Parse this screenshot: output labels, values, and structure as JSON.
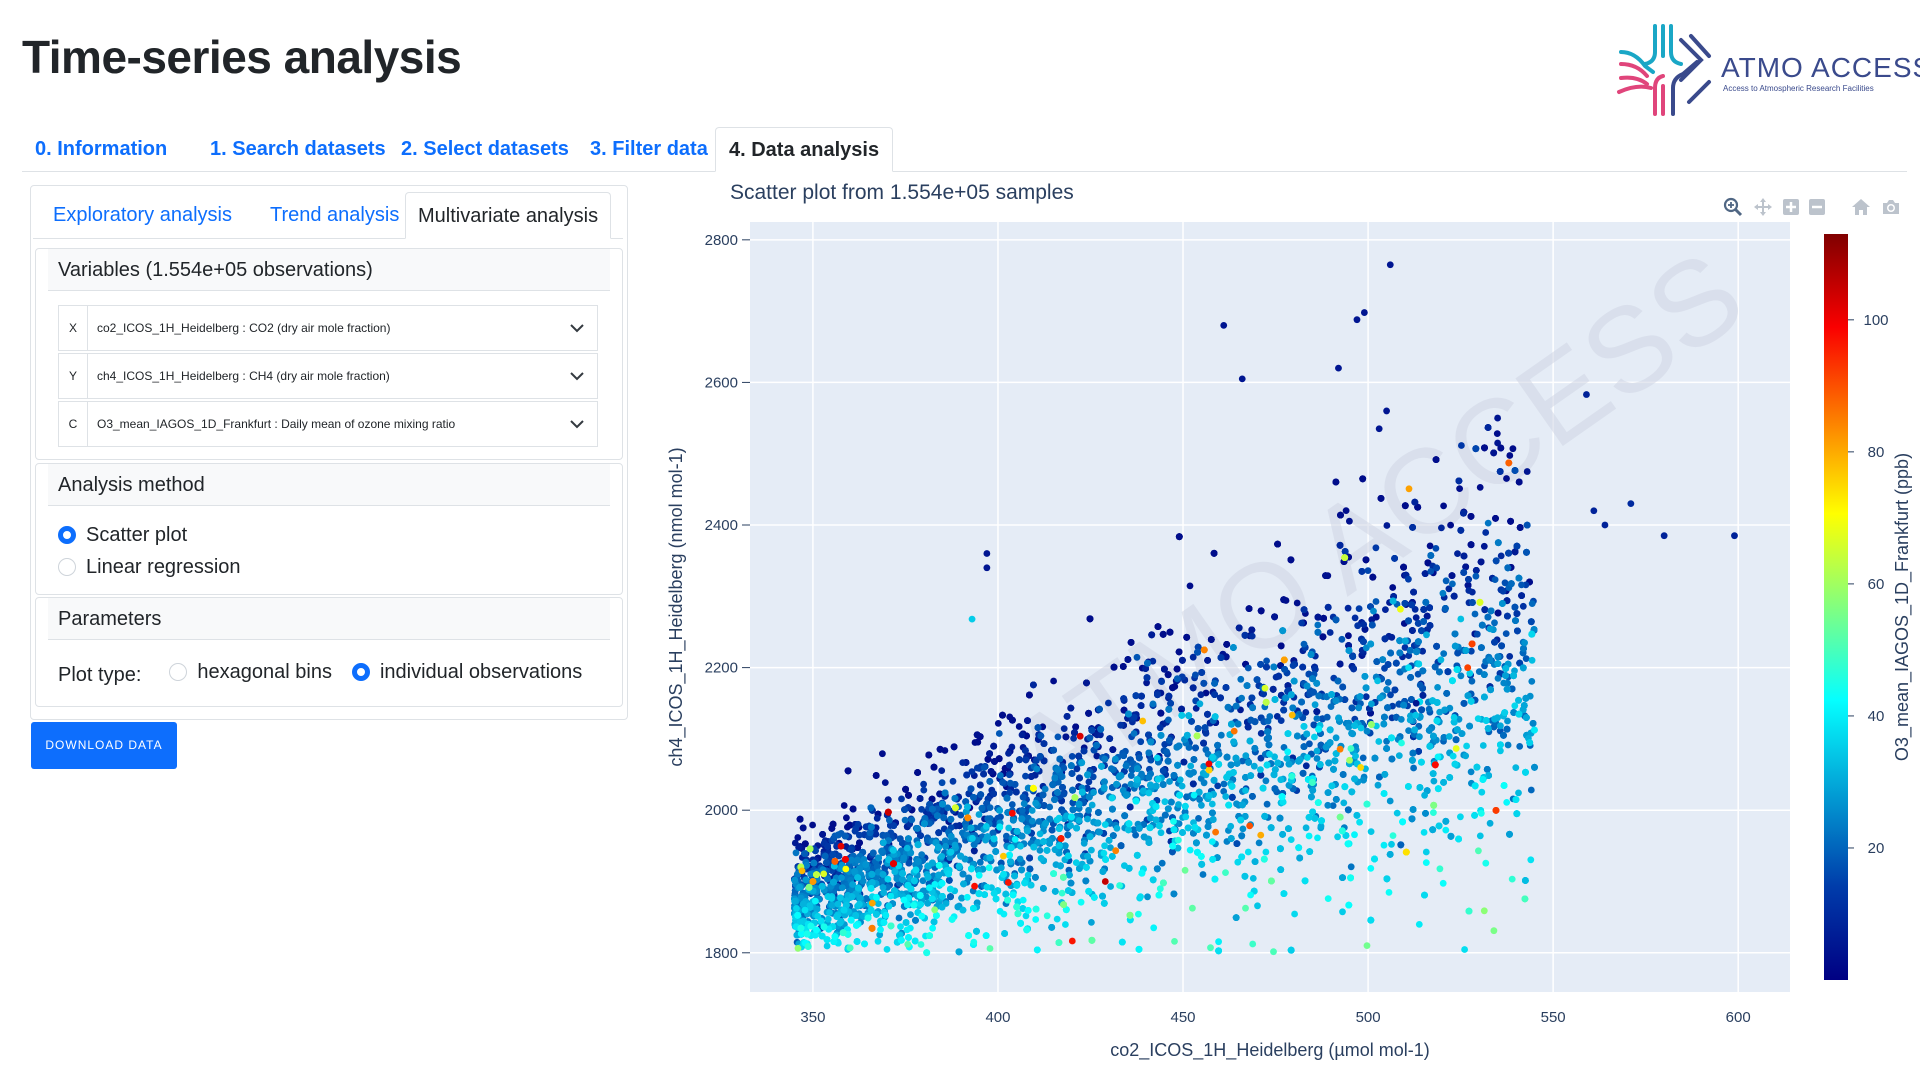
{
  "page": {
    "title": "Time-series analysis"
  },
  "logo": {
    "name": "ATMO ACCESS",
    "tagline": "Access to Atmospheric Research Facilities"
  },
  "tabs": [
    {
      "label": "0. Information"
    },
    {
      "label": "1. Search datasets"
    },
    {
      "label": "2. Select datasets"
    },
    {
      "label": "3. Filter data"
    },
    {
      "label": "4. Data analysis",
      "active": true
    }
  ],
  "subtabs": [
    {
      "label": "Exploratory analysis"
    },
    {
      "label": "Trend analysis"
    },
    {
      "label": "Multivariate analysis",
      "active": true
    }
  ],
  "variables": {
    "header": "Variables (1.554e+05 observations)",
    "rows": [
      {
        "prefix": "X",
        "value": "co2_ICOS_1H_Heidelberg : CO2 (dry air mole fraction)"
      },
      {
        "prefix": "Y",
        "value": "ch4_ICOS_1H_Heidelberg : CH4 (dry air mole fraction)"
      },
      {
        "prefix": "C",
        "value": "O3_mean_IAGOS_1D_Frankfurt : Daily mean of ozone mixing ratio"
      }
    ]
  },
  "analysis_method": {
    "header": "Analysis method",
    "options": [
      {
        "label": "Scatter plot",
        "checked": true
      },
      {
        "label": "Linear regression",
        "checked": false
      }
    ]
  },
  "parameters": {
    "header": "Parameters",
    "plot_type_label": "Plot type:",
    "options": [
      {
        "label": "hexagonal bins",
        "checked": false
      },
      {
        "label": "individual observations",
        "checked": true
      }
    ]
  },
  "download_button": "DOWNLOAD DATA",
  "plot": {
    "title": "Scatter plot from 1.554e+05 samples",
    "watermark": "ATMO ACCESS",
    "modebar_icons": [
      "zoom-icon",
      "pan-icon",
      "zoom-in-icon",
      "zoom-out-icon",
      "reset-axes-icon",
      "camera-icon"
    ]
  },
  "chart_data": {
    "type": "scatter",
    "xlabel": "co2_ICOS_1H_Heidelberg (µmol mol-1)",
    "ylabel": "ch4_ICOS_1H_Heidelberg (nmol mol-1)",
    "colorbar_label": "O3_mean_IAGOS_1D_Frankfurt (ppb)",
    "xlim": [
      333,
      614
    ],
    "ylim": [
      1745,
      2825
    ],
    "xticks": [
      350,
      400,
      450,
      500,
      550,
      600
    ],
    "yticks": [
      1800,
      2000,
      2200,
      2400,
      2600,
      2800
    ],
    "clim": [
      0,
      113
    ],
    "cticks": [
      20,
      40,
      60,
      80,
      100
    ],
    "colorscale": "Jet",
    "bulk": {
      "x_range": [
        345,
        545
      ],
      "trend": {
        "intercept_at_x": [
          360,
          1900
        ],
        "slope": 1.75
      },
      "count_drawn": 9000
    },
    "outliers": [
      {
        "x": 506,
        "y": 2765,
        "c": 5
      },
      {
        "x": 461,
        "y": 2680,
        "c": 5
      },
      {
        "x": 499,
        "y": 2698,
        "c": 5
      },
      {
        "x": 497,
        "y": 2688,
        "c": 5
      },
      {
        "x": 466,
        "y": 2605,
        "c": 5
      },
      {
        "x": 492,
        "y": 2620,
        "c": 5
      },
      {
        "x": 559,
        "y": 2583,
        "c": 8
      },
      {
        "x": 505,
        "y": 2560,
        "c": 5
      },
      {
        "x": 503,
        "y": 2535,
        "c": 5
      },
      {
        "x": 535,
        "y": 2550,
        "c": 5
      },
      {
        "x": 535,
        "y": 2515,
        "c": 5
      },
      {
        "x": 543,
        "y": 2475,
        "c": 5
      },
      {
        "x": 561,
        "y": 2420,
        "c": 8
      },
      {
        "x": 571,
        "y": 2430,
        "c": 10
      },
      {
        "x": 564,
        "y": 2400,
        "c": 8
      },
      {
        "x": 580,
        "y": 2385,
        "c": 8
      },
      {
        "x": 599,
        "y": 2385,
        "c": 8
      },
      {
        "x": 397,
        "y": 2360,
        "c": 5
      },
      {
        "x": 397,
        "y": 2340,
        "c": 5
      },
      {
        "x": 393,
        "y": 2268,
        "c": 35
      },
      {
        "x": 513,
        "y": 2150,
        "c": 5
      },
      {
        "x": 521,
        "y": 1972,
        "c": 40
      },
      {
        "x": 498,
        "y": 2060,
        "c": 75
      },
      {
        "x": 495,
        "y": 2070,
        "c": 60
      },
      {
        "x": 471,
        "y": 1965,
        "c": 80
      },
      {
        "x": 468,
        "y": 1978,
        "c": 90
      },
      {
        "x": 429,
        "y": 1900,
        "c": 105
      },
      {
        "x": 457,
        "y": 2065,
        "c": 100
      }
    ]
  }
}
